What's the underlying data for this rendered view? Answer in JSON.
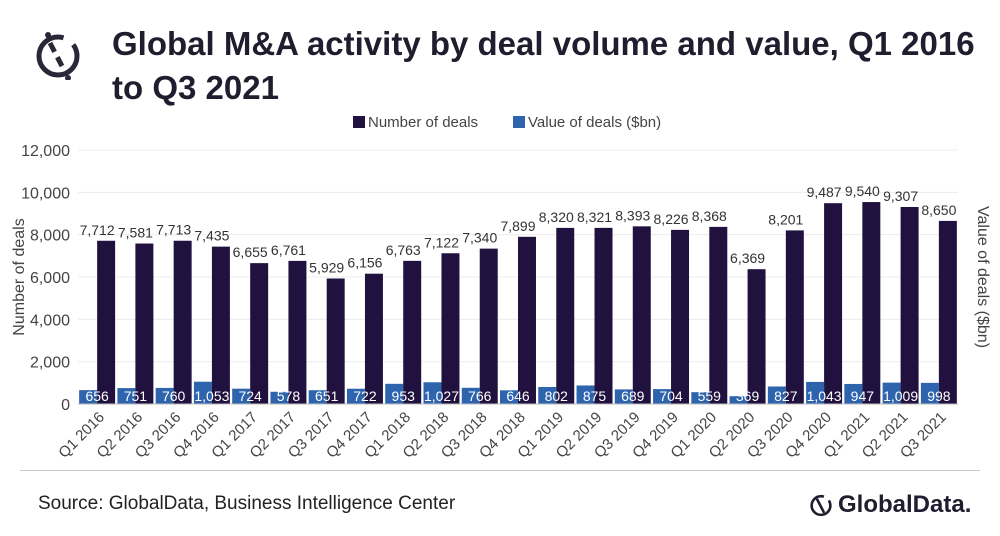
{
  "title": "Global M&A activity by deal volume and value, Q1 2016 to Q3 2021",
  "source": "Source: GlobalData, Business Intelligence Center",
  "brand": "GlobalData.",
  "chart_data": {
    "type": "bar",
    "title": "Global M&A activity by deal volume and value, Q1 2016 to Q3 2021",
    "ylabel": "Number of deals",
    "y2label": "Value of deals ($bn)",
    "ylim": [
      0,
      12000
    ],
    "yticks": [
      "0",
      "2,000",
      "4,000",
      "6,000",
      "8,000",
      "10,000",
      "12,000"
    ],
    "grid": true,
    "legend": "top",
    "categories": [
      "Q1 2016",
      "Q2 2016",
      "Q3 2016",
      "Q4 2016",
      "Q1 2017",
      "Q2 2017",
      "Q3 2017",
      "Q4 2017",
      "Q1 2018",
      "Q2 2018",
      "Q3 2018",
      "Q4 2018",
      "Q1 2019",
      "Q2 2019",
      "Q3 2019",
      "Q4 2019",
      "Q1 2020",
      "Q2 2020",
      "Q3 2020",
      "Q4 2020",
      "Q1 2021",
      "Q2 2021",
      "Q3 2021"
    ],
    "series": [
      {
        "name": "Number of deals",
        "color": "#21113f",
        "values": [
          7712,
          7581,
          7713,
          7435,
          6655,
          6761,
          5929,
          6156,
          6763,
          7122,
          7340,
          7899,
          8320,
          8321,
          8393,
          8226,
          8368,
          6369,
          8201,
          9487,
          9540,
          9307,
          8650
        ]
      },
      {
        "name": "Value of deals ($bn)",
        "color": "#2e64ad",
        "values": [
          656,
          751,
          760,
          1053,
          724,
          578,
          651,
          722,
          953,
          1027,
          766,
          646,
          802,
          875,
          689,
          704,
          559,
          369,
          827,
          1043,
          947,
          1009,
          998
        ]
      }
    ]
  }
}
